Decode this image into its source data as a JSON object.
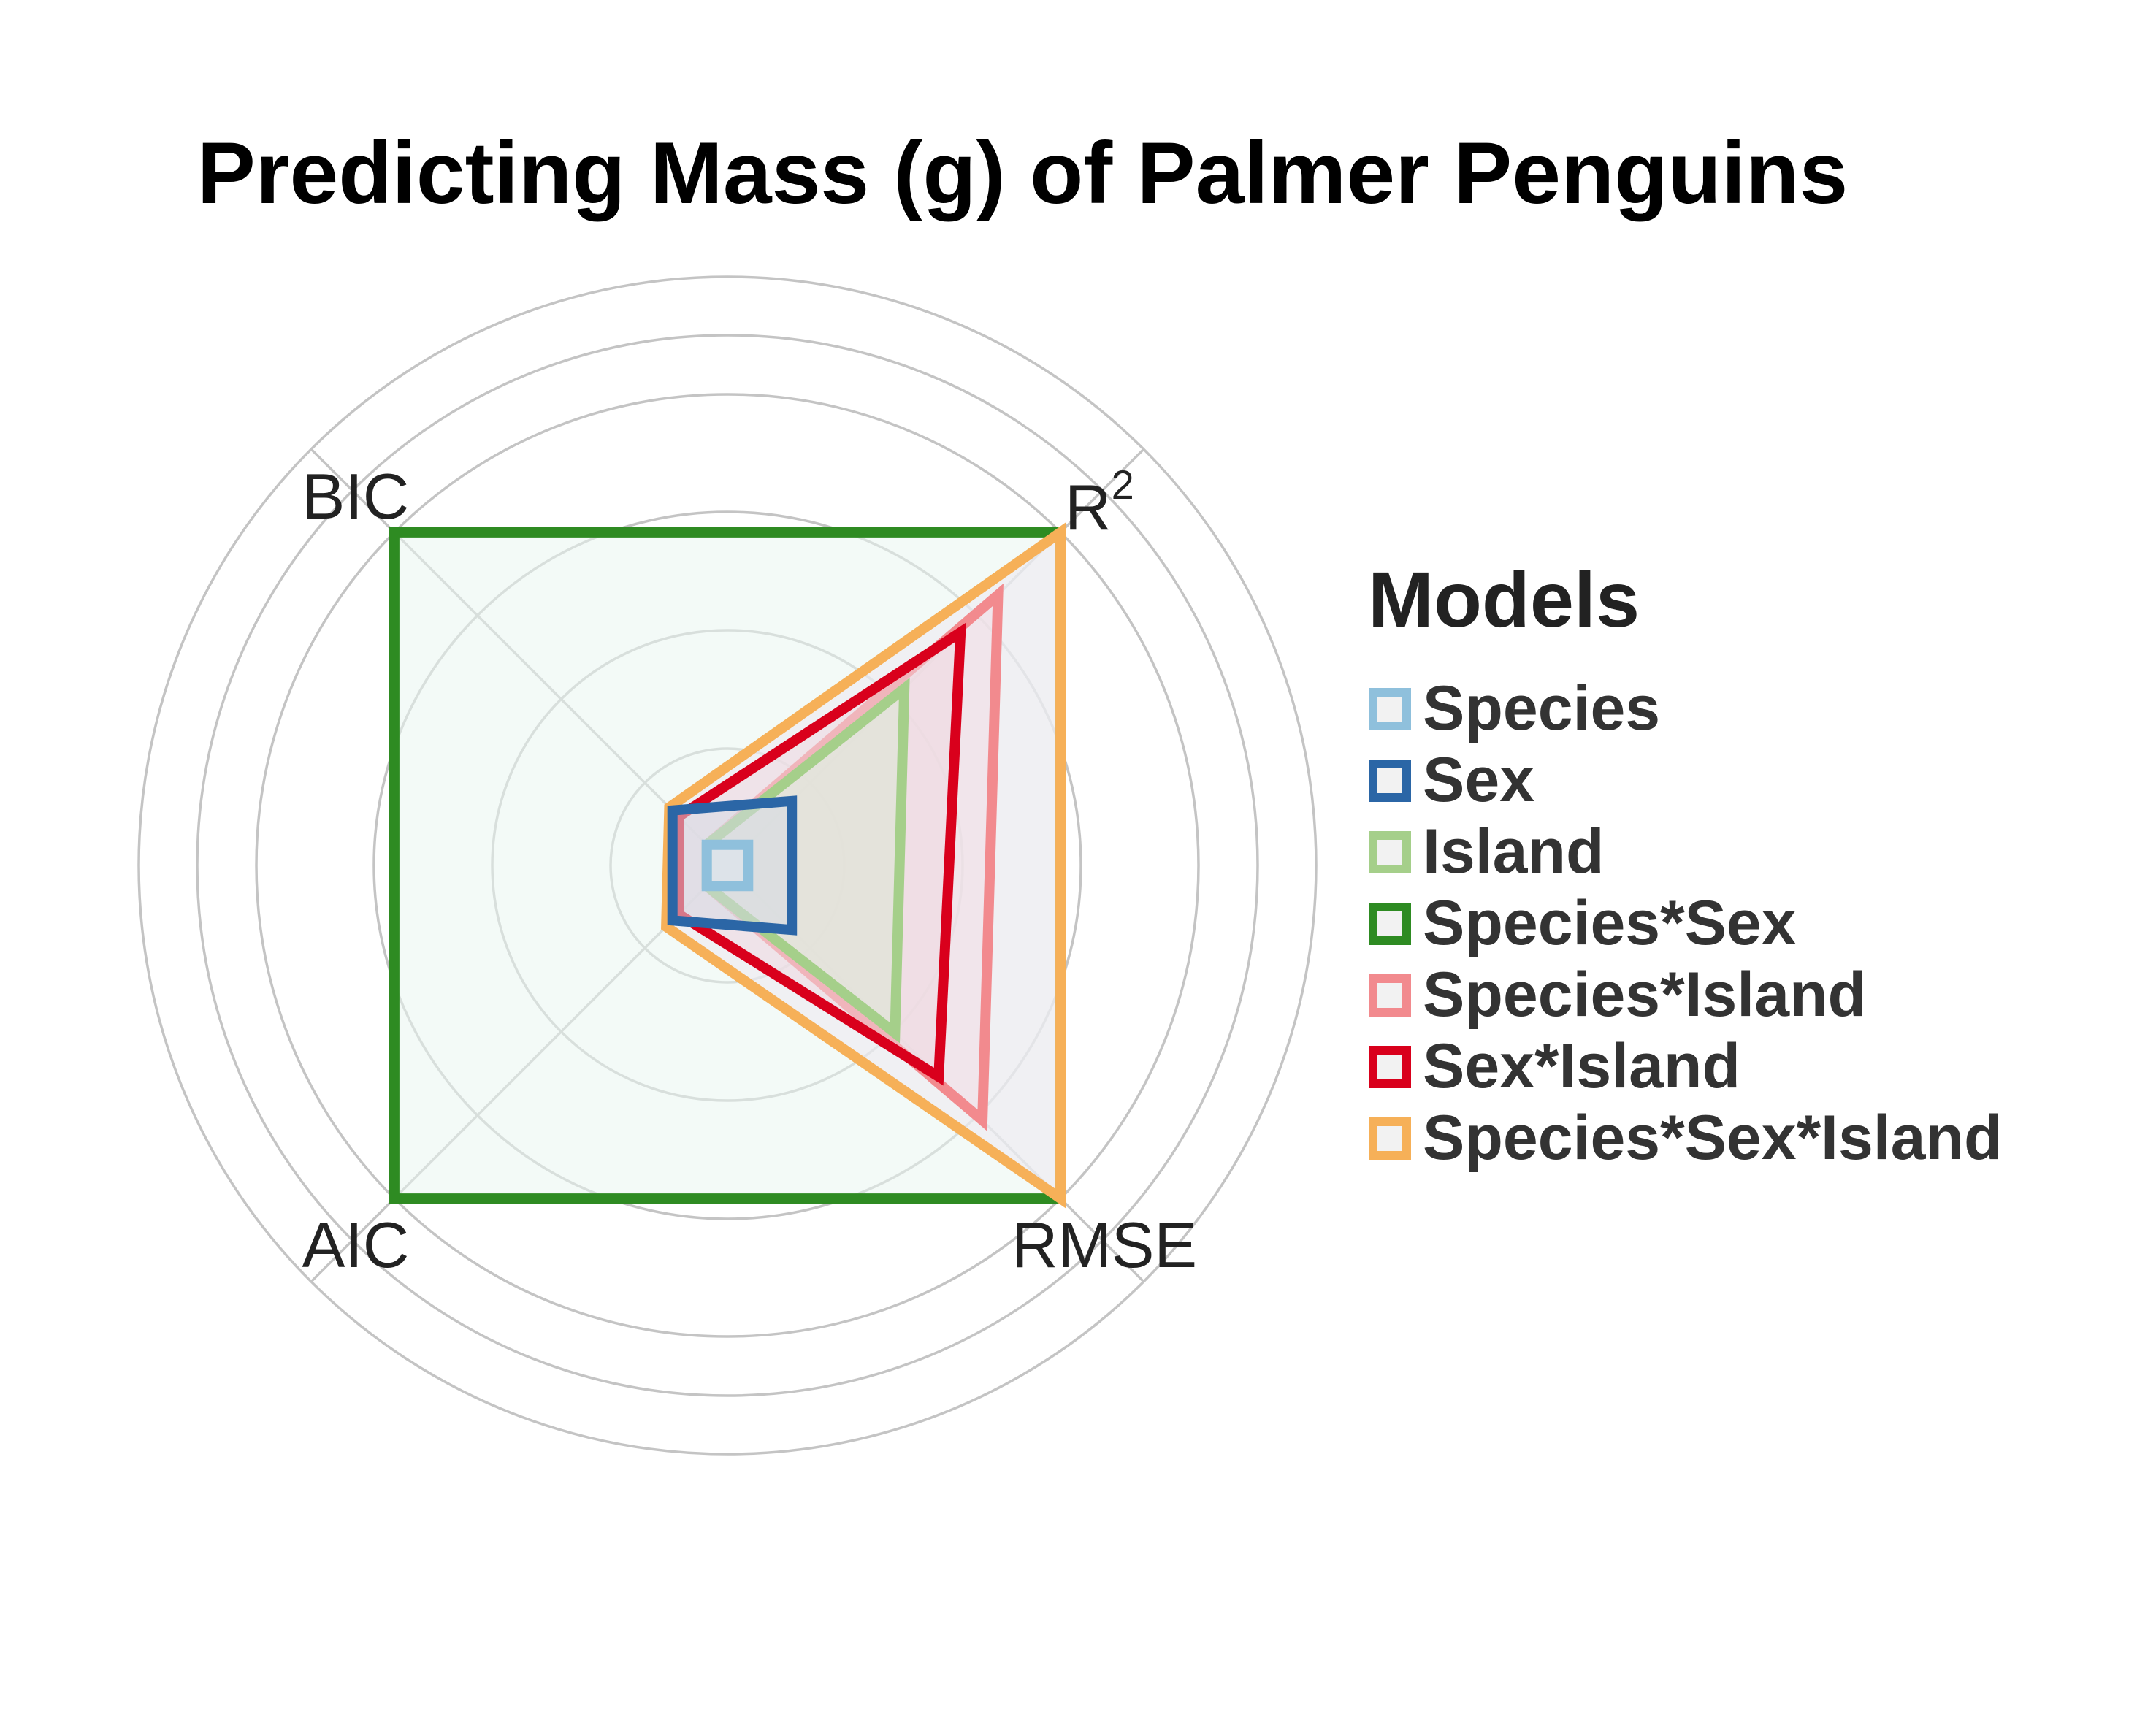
{
  "chart_data": {
    "type": "radar",
    "title": "Predicting Mass (g) of Palmer Penguins",
    "axes": [
      {
        "label": "R",
        "superscript": "2"
      },
      {
        "label": "RMSE",
        "superscript": ""
      },
      {
        "label": "AIC",
        "superscript": ""
      },
      {
        "label": "BIC",
        "superscript": ""
      }
    ],
    "legend": {
      "title": "Models",
      "placement": "right"
    },
    "grid_levels": 4,
    "rmax": 1.0,
    "series": [
      {
        "name": "Species",
        "color": "#8fc0dc",
        "fill": "#dfe8f0",
        "values": [
          0.0,
          0.0,
          0.0,
          0.0
        ]
      },
      {
        "name": "Sex",
        "color": "#2b66a6",
        "fill": "#d6dbe4",
        "values": [
          0.14,
          0.14,
          0.11,
          0.11
        ]
      },
      {
        "name": "Island",
        "color": "#a5cf8a",
        "fill": "#dbe7d3",
        "values": [
          0.5,
          0.47,
          0.0,
          0.0
        ]
      },
      {
        "name": "Species*Sex",
        "color": "#2e8b22",
        "fill": "#eaf5f0",
        "values": [
          1.0,
          1.0,
          1.0,
          1.0
        ]
      },
      {
        "name": "Species*Island",
        "color": "#f28a8e",
        "fill": "#f3dde3",
        "values": [
          0.8,
          0.75,
          0.0,
          0.0
        ]
      },
      {
        "name": "Sex*Island",
        "color": "#d9001c",
        "fill": "#eed8e0",
        "values": [
          0.68,
          0.61,
          0.09,
          0.09
        ]
      },
      {
        "name": "Species*Sex*Island",
        "color": "#f6b058",
        "fill": "#ece8f1",
        "values": [
          1.0,
          1.0,
          0.13,
          0.12
        ]
      }
    ]
  }
}
